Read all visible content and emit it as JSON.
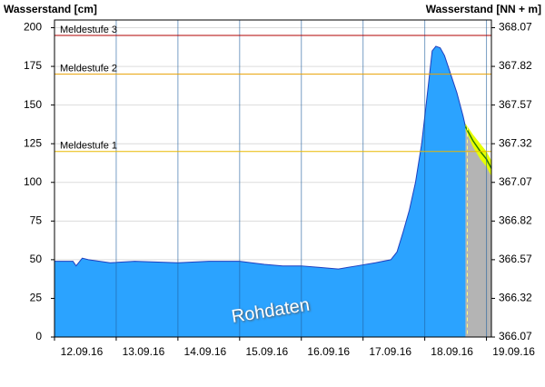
{
  "chart_data": {
    "type": "area",
    "y_label": "Wasserstand [cm]",
    "y2_label": "Wasserstand [NN + m]",
    "annotation": "Rohdaten",
    "xlim": [
      0,
      7.08
    ],
    "xticks": [
      {
        "value": 0,
        "label": "12.09.16"
      },
      {
        "value": 1,
        "label": "13.09.16"
      },
      {
        "value": 2,
        "label": "14.09.16"
      },
      {
        "value": 3,
        "label": "15.09.16"
      },
      {
        "value": 4,
        "label": "16.09.16"
      },
      {
        "value": 5,
        "label": "17.09.16"
      },
      {
        "value": 6,
        "label": "18.09.16"
      },
      {
        "value": 7,
        "label": "19.09.16"
      }
    ],
    "ylim": [
      0,
      205
    ],
    "yticks": [
      0,
      25,
      50,
      75,
      100,
      125,
      150,
      175,
      200
    ],
    "y2lim": [
      366.07,
      368.12
    ],
    "y2ticks": [
      366.07,
      366.32,
      366.57,
      366.82,
      367.07,
      367.32,
      367.57,
      367.82,
      368.07
    ],
    "grid": true,
    "thresholds": [
      {
        "name": "Meldestufe 3",
        "value": 195,
        "color": "#b00000"
      },
      {
        "name": "Meldestufe 2",
        "value": 170,
        "color": "#e8a000"
      },
      {
        "name": "Meldestufe 1",
        "value": 120,
        "color": "#e8b800"
      }
    ],
    "series": [
      {
        "color": "#2ba3ff",
        "x": [
          0,
          0.3,
          0.35,
          0.45,
          0.55,
          0.9,
          1.3,
          2.0,
          2.5,
          3.0,
          3.4,
          3.7,
          4.0,
          4.3,
          4.6,
          4.9,
          5.2,
          5.45,
          5.55,
          5.65,
          5.75,
          5.85,
          5.95,
          6.05,
          6.12,
          6.18,
          6.25,
          6.32,
          6.42,
          6.52,
          6.62,
          6.66
        ],
        "values": [
          49,
          49,
          46,
          51,
          50,
          48,
          49,
          48,
          49,
          49,
          47,
          46,
          46,
          45,
          44,
          46,
          48,
          50,
          55,
          68,
          82,
          100,
          125,
          160,
          185,
          188,
          187,
          182,
          170,
          158,
          143,
          136
        ]
      },
      {
        "color": "#b4b4b4",
        "band_color": "#e6ff00",
        "line_color": "#2a7a00",
        "x": [
          6.66,
          6.78,
          6.9,
          7.0,
          7.08
        ],
        "values": [
          136,
          127,
          120,
          115,
          109
        ],
        "lower": [
          134,
          123,
          115,
          110,
          104
        ],
        "upper": [
          138,
          131,
          125,
          120,
          114
        ]
      }
    ]
  }
}
